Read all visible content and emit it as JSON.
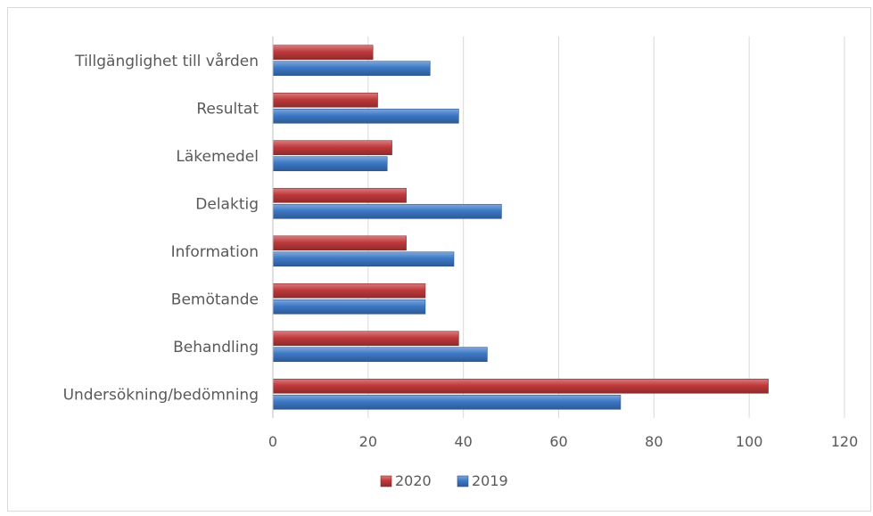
{
  "chart_data": {
    "type": "bar",
    "orientation": "horizontal",
    "title": "",
    "xlabel": "",
    "ylabel": "",
    "categories": [
      "Tillgänglighet till vården",
      "Resultat",
      "Läkemedel",
      "Delaktig",
      "Information",
      "Bemötande",
      "Behandling",
      "Undersökning/bedömning"
    ],
    "series": [
      {
        "name": "2020",
        "color": "#c0393b",
        "values": [
          21,
          22,
          25,
          28,
          28,
          32,
          39,
          104
        ]
      },
      {
        "name": "2019",
        "color": "#3c78c6",
        "values": [
          33,
          39,
          24,
          48,
          38,
          32,
          45,
          73
        ]
      }
    ],
    "xlim": [
      0,
      120
    ],
    "xticks": [
      "0",
      "20",
      "40",
      "60",
      "80",
      "100",
      "120"
    ],
    "grid": "vertical",
    "legend_position": "bottom",
    "legend_order": [
      "2020",
      "2019"
    ]
  }
}
